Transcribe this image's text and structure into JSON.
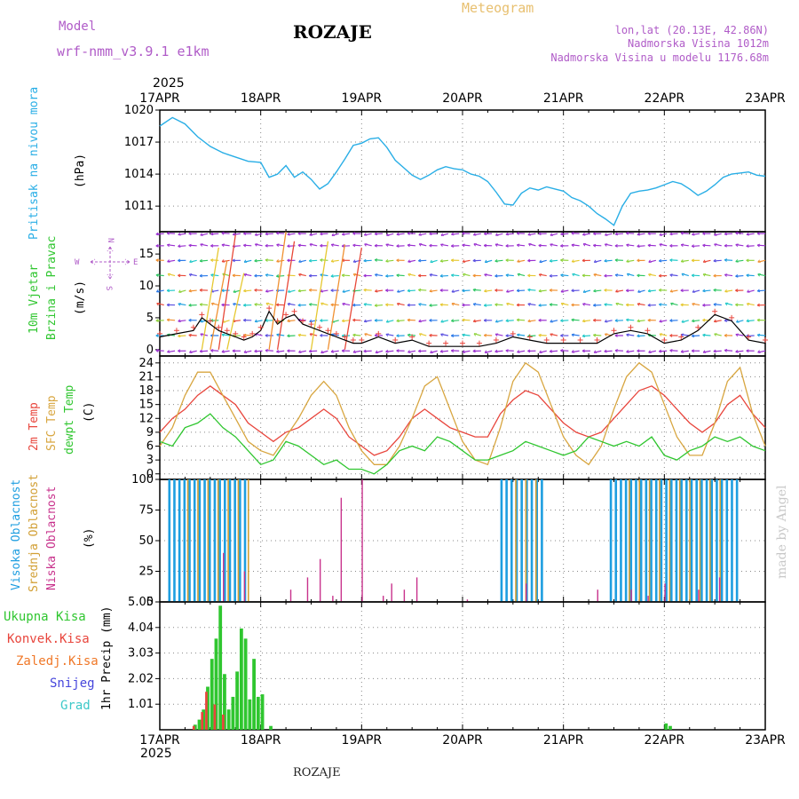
{
  "header": {
    "model_label": "Model",
    "model_name": "wrf-nmm_v3.9.1 e1km",
    "station": "ROZAJE",
    "meteogram_label": "Meteogram",
    "lonlat": "lon,lat (20.13E, 42.86N)",
    "elevation": "Nadmorska Visina 1012m",
    "model_elevation": "Nadmorska Visina u modelu 1176.68m",
    "year": "2025",
    "footer_station": "ROZAJE",
    "credit": "made by Angel"
  },
  "colors": {
    "pressure": "#29aee6",
    "temp2m": "#e8453c",
    "sfc": "#d8a640",
    "dewpt": "#2fc62f",
    "high": "#1e9ee0",
    "mid": "#d2a036",
    "low": "#c8328c",
    "total": "#2fc62f",
    "conv": "#e8453c",
    "frz": "#f07828",
    "snow": "#4646dc",
    "grad": "#3cc8c8",
    "wind_hi": "#9a30d0"
  },
  "date_ticks": [
    "17APR",
    "18APR",
    "19APR",
    "20APR",
    "21APR",
    "22APR",
    "23APR"
  ],
  "panels": {
    "pressure": {
      "label1": "Pritisak na nivou mora",
      "unit": "(hPa)",
      "ticks": [
        "1011",
        "1014",
        "1017",
        "1020"
      ]
    },
    "wind": {
      "label1": "10m Vjetar",
      "label2": "Brzina i Pravac",
      "unit": "(m/s)",
      "ticks": [
        "0",
        "5",
        "10",
        "15"
      ],
      "compass": {
        "n": "N",
        "s": "S",
        "e": "E",
        "w": "W"
      }
    },
    "temp": {
      "label1": "2m Temp",
      "label2": "SFC Temp",
      "label3": "dewpt Temp",
      "unit": "(C)",
      "ticks": [
        "0",
        "3",
        "6",
        "9",
        "12",
        "15",
        "18",
        "21",
        "24"
      ]
    },
    "cloud": {
      "label1": "Visoka Oblacnost",
      "label2": "Srednja Oblacnost",
      "label3": "Niska Oblacnost",
      "unit": "(%)",
      "ticks": [
        "0",
        "25",
        "50",
        "75",
        "100"
      ]
    },
    "precip": {
      "unit": "1hr Precip (mm)",
      "ticks": [
        "1.01",
        "2.02",
        "3.03",
        "4.04",
        "5.05"
      ],
      "legend": [
        "Ukupna Kisa",
        "Konvek.Kisa",
        "Zaledj.Kisa",
        "Snijeg",
        "Grad"
      ]
    }
  },
  "chart_data": [
    {
      "type": "line",
      "ylabel": "(hPa)",
      "ylim": [
        1008.6,
        1020
      ],
      "x_range_hours": [
        0,
        144
      ],
      "series": [
        {
          "x": [
            0,
            3,
            6,
            9,
            12,
            15,
            18,
            21,
            24,
            26,
            28,
            30,
            32,
            34,
            36,
            38,
            40,
            42,
            44,
            46,
            48,
            50,
            52,
            54,
            56,
            58,
            60,
            62,
            64,
            66,
            68,
            70,
            72,
            74,
            76,
            78,
            80,
            82,
            84,
            86,
            88,
            90,
            92,
            94,
            96,
            98,
            100,
            102,
            104,
            106,
            108,
            110,
            112,
            114,
            116,
            118,
            120,
            122,
            124,
            126,
            128,
            130,
            132,
            134,
            136,
            138,
            140,
            142,
            144
          ],
          "y": [
            1018.5,
            1019.3,
            1018.7,
            1017.5,
            1016.6,
            1016.0,
            1015.6,
            1015.2,
            1015.1,
            1013.7,
            1014.0,
            1014.8,
            1013.7,
            1014.2,
            1013.5,
            1012.6,
            1013.1,
            1014.2,
            1015.4,
            1016.7,
            1016.9,
            1017.3,
            1017.4,
            1016.5,
            1015.3,
            1014.6,
            1013.9,
            1013.5,
            1013.9,
            1014.4,
            1014.7,
            1014.5,
            1014.4,
            1014.0,
            1013.8,
            1013.3,
            1012.3,
            1011.2,
            1011.1,
            1012.2,
            1012.7,
            1012.5,
            1012.8,
            1012.6,
            1012.4,
            1011.8,
            1011.5,
            1011.0,
            1010.3,
            1009.8,
            1009.2,
            1011.0,
            1012.2,
            1012.4,
            1012.5,
            1012.7,
            1013.0,
            1013.3,
            1013.1,
            1012.6,
            1012.0,
            1012.4,
            1013.0,
            1013.7,
            1014.0,
            1014.1,
            1014.2,
            1013.9,
            1013.8
          ]
        }
      ]
    },
    {
      "type": "line",
      "ylabel": "(m/s)",
      "ylim": [
        -1,
        18.5
      ],
      "x_range_hours": [
        0,
        144
      ],
      "series": [
        {
          "name": "speed",
          "x": [
            0,
            4,
            8,
            10,
            12,
            14,
            16,
            18,
            20,
            22,
            24,
            26,
            28,
            30,
            32,
            34,
            36,
            38,
            40,
            42,
            44,
            46,
            48,
            52,
            56,
            60,
            64,
            68,
            72,
            76,
            80,
            84,
            88,
            92,
            96,
            100,
            104,
            108,
            112,
            116,
            120,
            124,
            128,
            132,
            136,
            140,
            144
          ],
          "y": [
            2,
            2.5,
            3,
            5,
            4,
            3,
            2.5,
            2,
            1.5,
            2,
            3,
            6,
            4,
            5,
            5.5,
            4,
            3.5,
            3,
            2.5,
            2,
            1.5,
            1,
            1,
            2,
            1,
            1.5,
            0.5,
            0.5,
            0.5,
            0.5,
            1,
            2,
            1.5,
            1,
            1,
            1,
            1,
            2.5,
            3,
            2.5,
            1,
            1.5,
            3,
            5.5,
            4.5,
            1.5,
            1
          ]
        }
      ]
    },
    {
      "type": "line",
      "ylabel": "(C)",
      "ylim": [
        -1.2,
        25.5
      ],
      "x_range_hours": [
        0,
        144
      ],
      "series": [
        {
          "name": "2m Temp",
          "x": [
            0,
            3,
            6,
            9,
            12,
            15,
            18,
            21,
            24,
            27,
            30,
            33,
            36,
            39,
            42,
            45,
            48,
            51,
            54,
            57,
            60,
            63,
            66,
            69,
            72,
            75,
            78,
            81,
            84,
            87,
            90,
            93,
            96,
            99,
            102,
            105,
            108,
            111,
            114,
            117,
            120,
            123,
            126,
            129,
            132,
            135,
            138,
            141,
            144
          ],
          "y": [
            9,
            12,
            14,
            17,
            19,
            17,
            15,
            11,
            9,
            7,
            9,
            10,
            12,
            14,
            12,
            8,
            6,
            4,
            5,
            8,
            12,
            14,
            12,
            10,
            9,
            8,
            8,
            13,
            16,
            18,
            17,
            14,
            11,
            9,
            8,
            9,
            12,
            15,
            18,
            19,
            17,
            14,
            11,
            9,
            11,
            15,
            17,
            13,
            10
          ]
        },
        {
          "name": "SFC Temp",
          "x": [
            0,
            3,
            6,
            9,
            12,
            15,
            18,
            21,
            24,
            27,
            30,
            33,
            36,
            39,
            42,
            45,
            48,
            51,
            54,
            57,
            60,
            63,
            66,
            69,
            72,
            75,
            78,
            81,
            84,
            87,
            90,
            93,
            96,
            99,
            102,
            105,
            108,
            111,
            114,
            117,
            120,
            123,
            126,
            129,
            132,
            135,
            138,
            141,
            144
          ],
          "y": [
            6,
            10,
            17,
            22,
            22,
            17,
            12,
            7,
            5,
            4,
            8,
            12,
            17,
            20,
            17,
            10,
            5,
            2,
            2,
            6,
            12,
            19,
            21,
            14,
            7,
            3,
            2,
            10,
            20,
            24,
            22,
            15,
            8,
            4,
            2,
            6,
            14,
            21,
            24,
            22,
            15,
            8,
            4,
            4,
            11,
            20,
            23,
            13,
            6
          ]
        },
        {
          "name": "dewpt Temp",
          "x": [
            0,
            3,
            6,
            9,
            12,
            15,
            18,
            21,
            24,
            27,
            30,
            33,
            36,
            39,
            42,
            45,
            48,
            51,
            54,
            57,
            60,
            63,
            66,
            69,
            72,
            75,
            78,
            81,
            84,
            87,
            90,
            93,
            96,
            99,
            102,
            105,
            108,
            111,
            114,
            117,
            120,
            123,
            126,
            129,
            132,
            135,
            138,
            141,
            144
          ],
          "y": [
            7,
            6,
            10,
            11,
            13,
            10,
            8,
            5,
            2,
            3,
            7,
            6,
            4,
            2,
            3,
            1,
            1,
            0,
            2,
            5,
            6,
            5,
            8,
            7,
            5,
            3,
            3,
            4,
            5,
            7,
            6,
            5,
            4,
            5,
            8,
            7,
            6,
            7,
            6,
            8,
            4,
            3,
            5,
            6,
            8,
            7,
            8,
            6,
            5
          ]
        }
      ]
    },
    {
      "type": "bar",
      "ylabel": "(%)",
      "ylim": [
        0,
        100
      ],
      "x_range_hours": [
        0,
        144
      ],
      "series": [
        {
          "name": "Visoka Oblacnost",
          "segments": [
            [
              2,
              20,
              100
            ],
            [
              81,
              91,
              100
            ],
            [
              107,
              137,
              100
            ]
          ]
        },
        {
          "name": "Srednja Oblacnost",
          "segments": [
            [
              6,
              21,
              100
            ],
            [
              84,
              90,
              100
            ],
            [
              111,
              135,
              100
            ]
          ]
        },
        {
          "name": "Niska Oblacnost",
          "x": [
            15,
            20,
            31,
            35,
            38,
            41,
            43,
            48,
            53,
            55,
            58,
            61,
            73,
            87,
            104,
            112,
            116,
            120,
            128,
            133
          ],
          "y": [
            40,
            25,
            10,
            20,
            35,
            5,
            85,
            100,
            5,
            15,
            10,
            20,
            2,
            15,
            10,
            10,
            5,
            15,
            10,
            20
          ]
        }
      ]
    },
    {
      "type": "bar",
      "ylabel": "1hr Precip (mm)",
      "ylim": [
        0,
        5.05
      ],
      "x_range_hours": [
        0,
        144
      ],
      "series": [
        {
          "name": "Ukupna Kisa",
          "x": [
            8,
            9,
            10,
            11,
            12,
            13,
            14,
            15,
            16,
            17,
            18,
            19,
            20,
            21,
            22,
            23,
            24,
            26,
            120,
            121
          ],
          "y": [
            0.2,
            0.4,
            0.8,
            1.7,
            2.8,
            3.6,
            4.9,
            2.2,
            0.8,
            1.3,
            2.3,
            4.0,
            3.6,
            1.2,
            2.8,
            1.3,
            1.4,
            0.15,
            0.25,
            0.15
          ]
        },
        {
          "name": "Konvek.Kisa",
          "x": [
            8,
            10,
            11,
            13,
            15
          ],
          "y": [
            0.15,
            0.7,
            1.5,
            1.0,
            0.6
          ]
        }
      ]
    }
  ]
}
